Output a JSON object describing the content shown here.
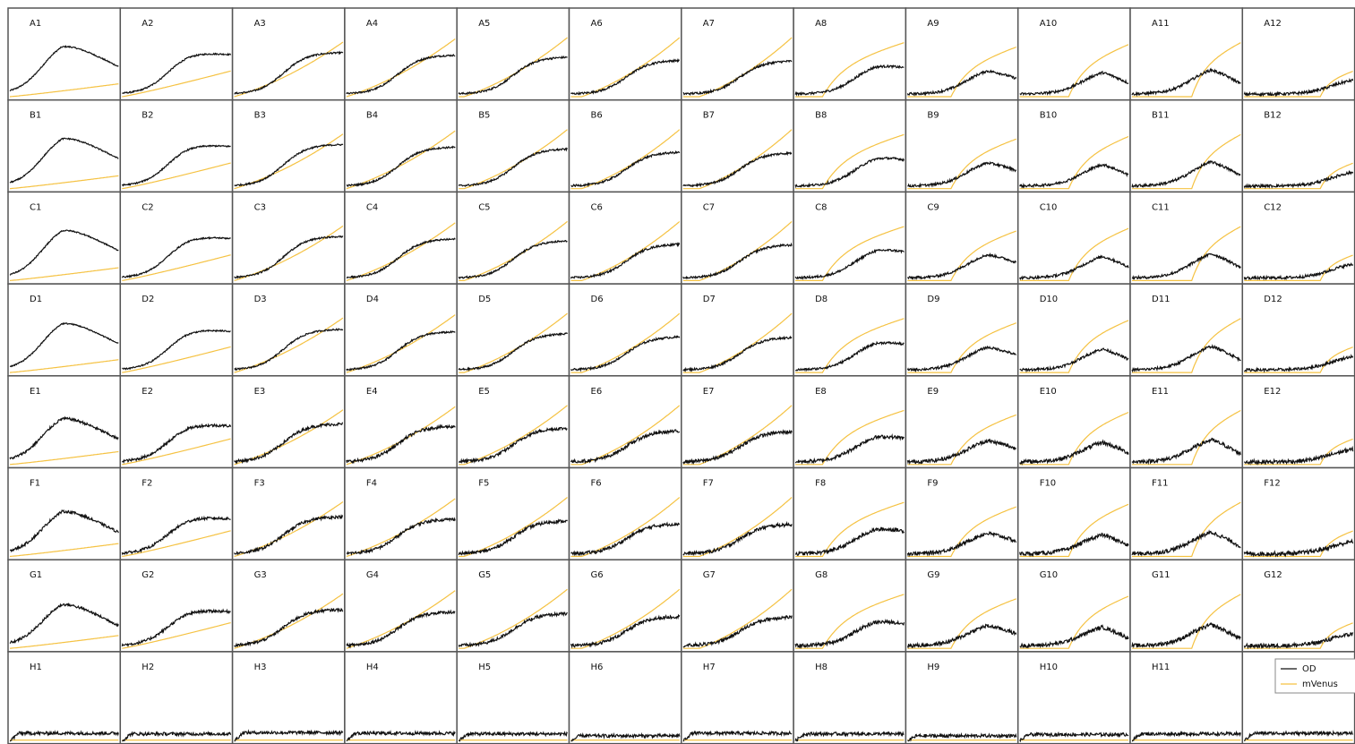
{
  "chart_data": {
    "type": "line",
    "layout": "small-multiples grid",
    "rows": [
      "A",
      "B",
      "C",
      "D",
      "E",
      "F",
      "G",
      "H"
    ],
    "columns": [
      1,
      2,
      3,
      4,
      5,
      6,
      7,
      8,
      9,
      10,
      11,
      12
    ],
    "title": "",
    "xlabel": "",
    "ylabel": "",
    "xlim": [
      0,
      1
    ],
    "ylim": [
      0,
      1
    ],
    "grid": false,
    "legend": {
      "position": "bottom-right (in well H12)",
      "entries": [
        {
          "name": "OD",
          "color": "#111111"
        },
        {
          "name": "mVenus",
          "color": "#f5c242"
        }
      ]
    },
    "series_style": {
      "OD": {
        "color": "#111111"
      },
      "mVenus": {
        "color": "#f5c242"
      }
    },
    "wells_missing_label": [
      "H12"
    ],
    "od_curve_description": "Each well shows an OD growth curve; values are normalized 0-1 within each well and estimated from the image.",
    "od_peak_by_column": [
      0.93,
      0.72,
      0.7,
      0.66,
      0.63,
      0.58,
      0.57,
      0.55,
      0.48,
      0.45,
      0.5,
      0.3
    ],
    "od_midpoint_by_column": [
      0.3,
      0.42,
      0.45,
      0.47,
      0.5,
      0.51,
      0.52,
      0.55,
      0.55,
      0.58,
      0.55,
      0.8
    ],
    "od_decline_by_column": [
      0.45,
      0.05,
      0.0,
      0.0,
      0.0,
      0.0,
      0.0,
      0.08,
      0.18,
      0.22,
      0.28,
      0.0
    ],
    "od_peak_row_scale": {
      "A": 1.0,
      "B": 1.0,
      "C": 1.0,
      "D": 0.98,
      "E": 0.92,
      "F": 0.9,
      "G": 0.88,
      "H": 0.0
    },
    "mvenus_end_by_column": [
      0.2,
      0.4,
      0.85,
      0.9,
      0.92,
      0.92,
      0.92,
      0.85,
      0.78,
      0.82,
      0.85,
      0.4
    ],
    "mvenus_onset_by_column": [
      0.0,
      0.0,
      0.0,
      0.0,
      0.05,
      0.1,
      0.15,
      0.25,
      0.4,
      0.45,
      0.55,
      0.7
    ],
    "h_row_od_level": [
      0.12,
      0.11,
      0.13,
      0.12,
      0.11,
      0.08,
      0.12,
      0.11,
      0.08,
      0.1,
      0.11,
      0.12
    ]
  }
}
